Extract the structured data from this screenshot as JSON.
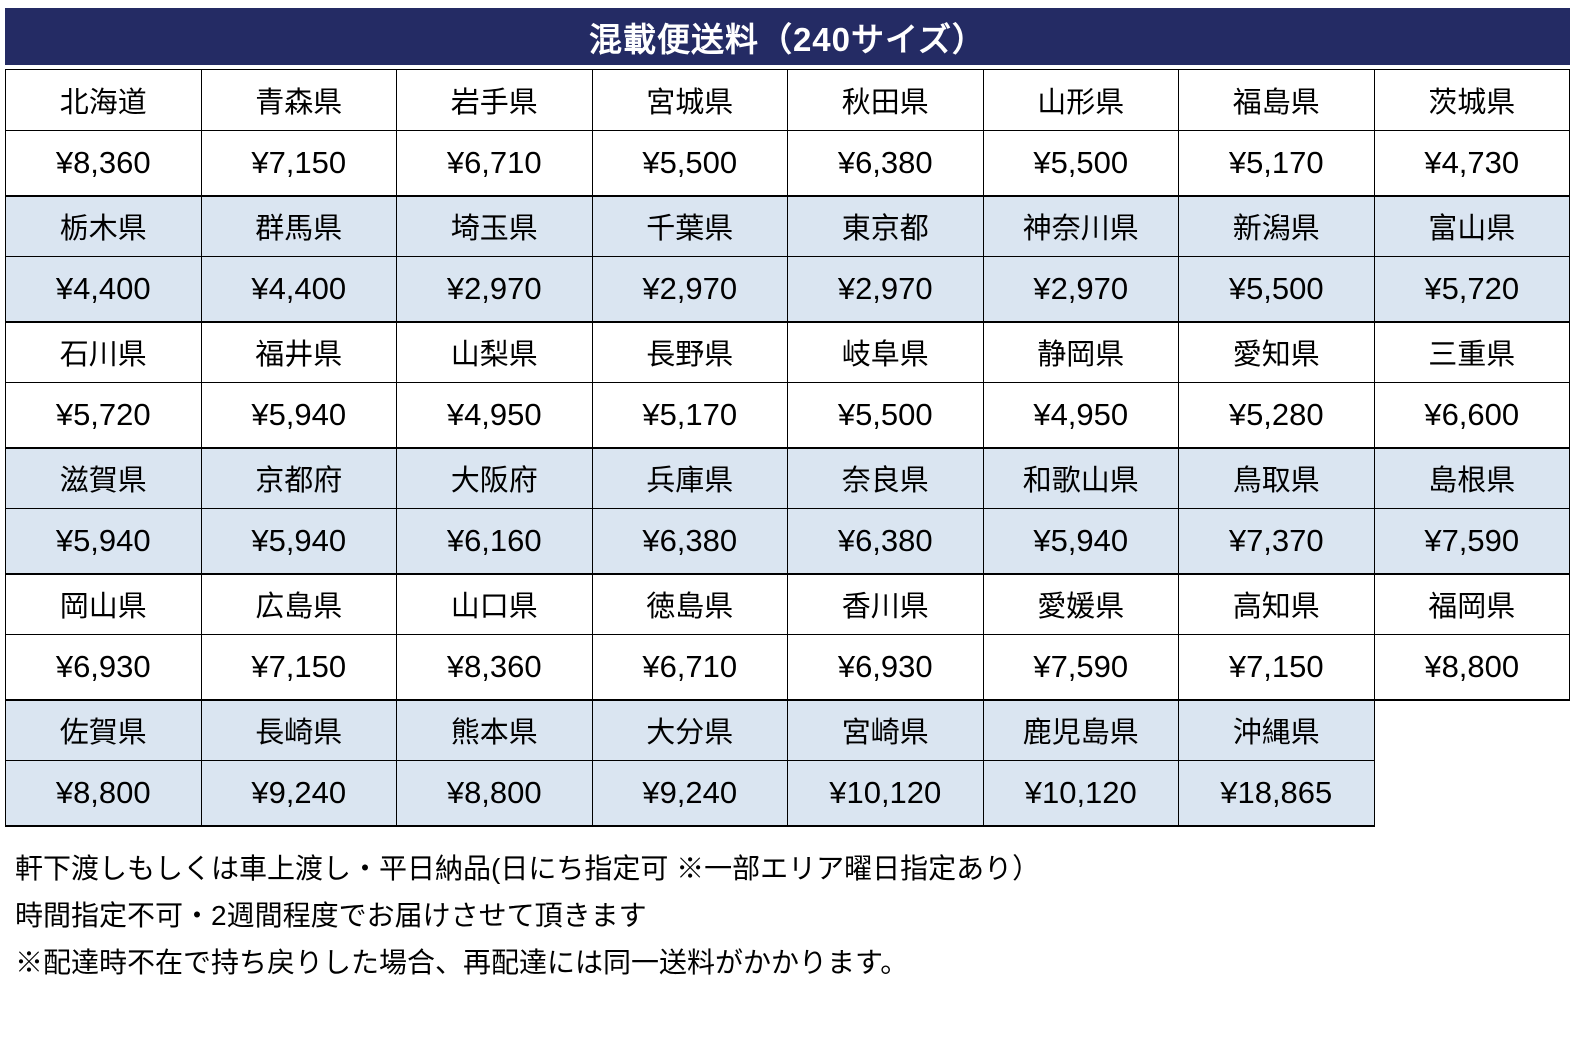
{
  "title": "混載便送料（240サイズ）",
  "colors": {
    "header_bg": "#242B64",
    "header_text": "#FFFFFF",
    "row_shade_blue": "#DAE5F1",
    "row_shade_white": "#FFFFFF",
    "border": "#000000"
  },
  "table": {
    "columns": 8,
    "groups": [
      {
        "shade": "white",
        "cells": [
          {
            "name": "北海道",
            "price": "¥8,360"
          },
          {
            "name": "青森県",
            "price": "¥7,150"
          },
          {
            "name": "岩手県",
            "price": "¥6,710"
          },
          {
            "name": "宮城県",
            "price": "¥5,500"
          },
          {
            "name": "秋田県",
            "price": "¥6,380"
          },
          {
            "name": "山形県",
            "price": "¥5,500"
          },
          {
            "name": "福島県",
            "price": "¥5,170"
          },
          {
            "name": "茨城県",
            "price": "¥4,730"
          }
        ]
      },
      {
        "shade": "blue",
        "cells": [
          {
            "name": "栃木県",
            "price": "¥4,400"
          },
          {
            "name": "群馬県",
            "price": "¥4,400"
          },
          {
            "name": "埼玉県",
            "price": "¥2,970"
          },
          {
            "name": "千葉県",
            "price": "¥2,970"
          },
          {
            "name": "東京都",
            "price": "¥2,970"
          },
          {
            "name": "神奈川県",
            "price": "¥2,970"
          },
          {
            "name": "新潟県",
            "price": "¥5,500"
          },
          {
            "name": "富山県",
            "price": "¥5,720"
          }
        ]
      },
      {
        "shade": "white",
        "cells": [
          {
            "name": "石川県",
            "price": "¥5,720"
          },
          {
            "name": "福井県",
            "price": "¥5,940"
          },
          {
            "name": "山梨県",
            "price": "¥4,950"
          },
          {
            "name": "長野県",
            "price": "¥5,170"
          },
          {
            "name": "岐阜県",
            "price": "¥5,500"
          },
          {
            "name": "静岡県",
            "price": "¥4,950"
          },
          {
            "name": "愛知県",
            "price": "¥5,280"
          },
          {
            "name": "三重県",
            "price": "¥6,600"
          }
        ]
      },
      {
        "shade": "blue",
        "cells": [
          {
            "name": "滋賀県",
            "price": "¥5,940"
          },
          {
            "name": "京都府",
            "price": "¥5,940"
          },
          {
            "name": "大阪府",
            "price": "¥6,160"
          },
          {
            "name": "兵庫県",
            "price": "¥6,380"
          },
          {
            "name": "奈良県",
            "price": "¥6,380"
          },
          {
            "name": "和歌山県",
            "price": "¥5,940"
          },
          {
            "name": "鳥取県",
            "price": "¥7,370"
          },
          {
            "name": "島根県",
            "price": "¥7,590"
          }
        ]
      },
      {
        "shade": "white",
        "cells": [
          {
            "name": "岡山県",
            "price": "¥6,930"
          },
          {
            "name": "広島県",
            "price": "¥7,150"
          },
          {
            "name": "山口県",
            "price": "¥8,360"
          },
          {
            "name": "徳島県",
            "price": "¥6,710"
          },
          {
            "name": "香川県",
            "price": "¥6,930"
          },
          {
            "name": "愛媛県",
            "price": "¥7,590"
          },
          {
            "name": "高知県",
            "price": "¥7,150"
          },
          {
            "name": "福岡県",
            "price": "¥8,800"
          }
        ]
      },
      {
        "shade": "blue",
        "cells": [
          {
            "name": "佐賀県",
            "price": "¥8,800"
          },
          {
            "name": "長崎県",
            "price": "¥9,240"
          },
          {
            "name": "熊本県",
            "price": "¥8,800"
          },
          {
            "name": "大分県",
            "price": "¥9,240"
          },
          {
            "name": "宮崎県",
            "price": "¥10,120"
          },
          {
            "name": "鹿児島県",
            "price": "¥10,120"
          },
          {
            "name": "沖縄県",
            "price": "¥18,865"
          }
        ]
      }
    ]
  },
  "notes": [
    "軒下渡しもしくは車上渡し・平日納品(日にち指定可 ※一部エリア曜日指定あり）",
    "時間指定不可・2週間程度でお届けさせて頂きます",
    "※配達時不在で持ち戻りした場合、再配達には同一送料がかかります。"
  ]
}
